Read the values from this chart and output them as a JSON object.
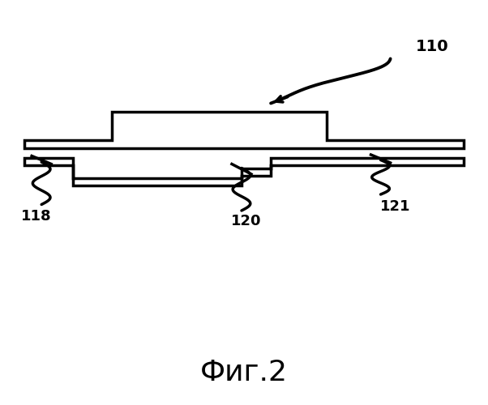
{
  "title": "Фиг.2",
  "title_fontsize": 26,
  "bg_color": "#ffffff",
  "line_color": "#000000",
  "line_width": 2.5,
  "label_110": "110",
  "label_118": "118",
  "label_120": "120",
  "label_121": "121",
  "label_fontsize": 13,
  "fig_width": 6.02,
  "fig_height": 5.0,
  "dpi": 100
}
